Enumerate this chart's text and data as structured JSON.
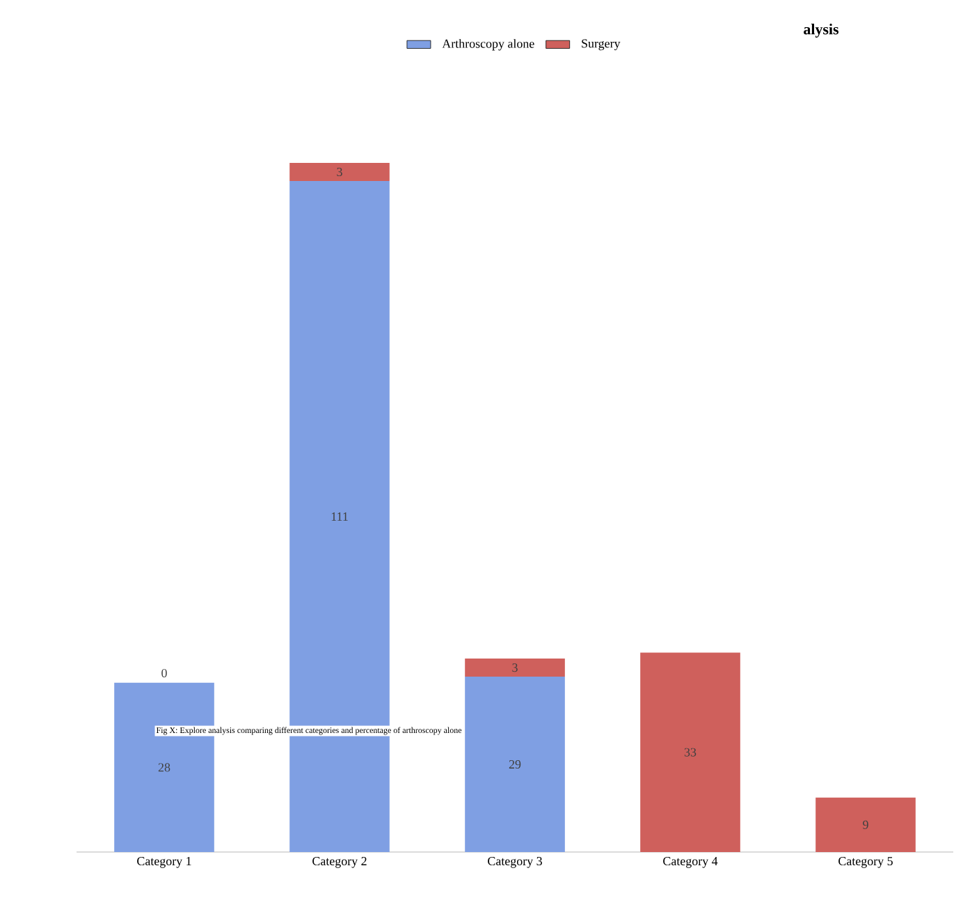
{
  "chart_data": {
    "type": "bar",
    "stacked": true,
    "title": "alysis",
    "categories": [
      "Category 1",
      "Category 2",
      "Category 3",
      "Category 4",
      "Category 5"
    ],
    "series": [
      {
        "name": "Arthroscopy alone",
        "color": "#7f9fe3",
        "values": [
          28,
          111,
          29,
          null,
          null
        ]
      },
      {
        "name": "Surgery",
        "color": "#cf605c",
        "values": [
          0,
          3,
          3,
          33,
          9
        ]
      }
    ],
    "data_labels": true,
    "legend": "top",
    "annotations": [
      "Fig X: Explore analysis comparing different categories and percentage of arthroscopy alone"
    ]
  }
}
